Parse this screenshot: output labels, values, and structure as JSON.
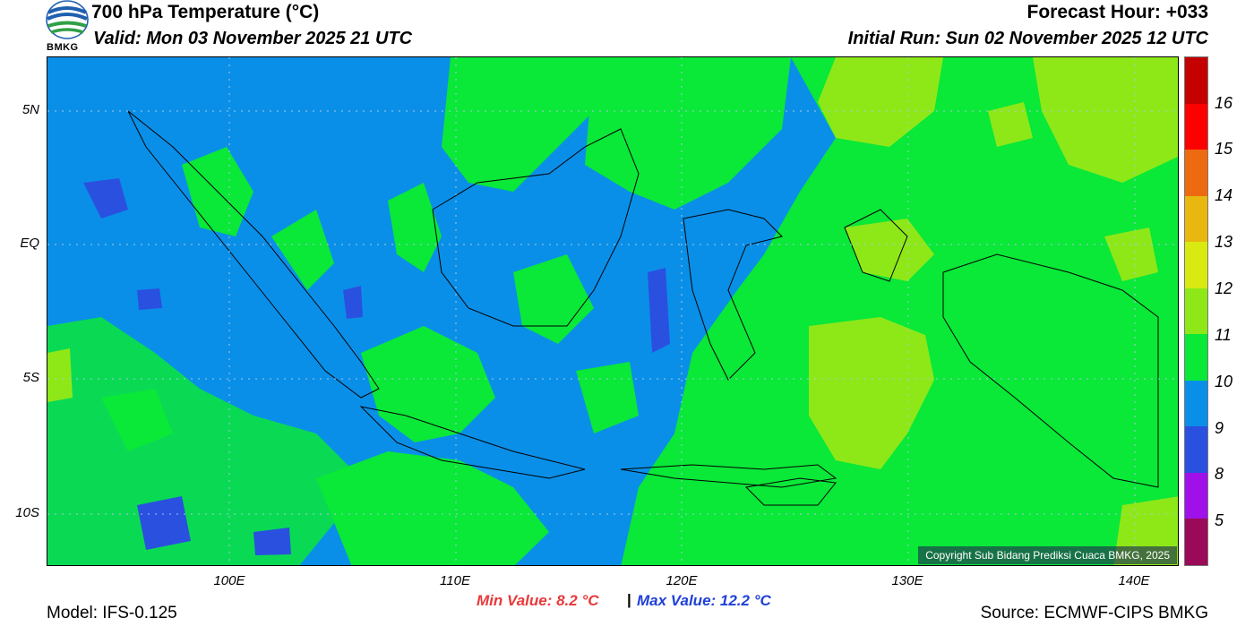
{
  "header": {
    "title": "700 hPa Temperature (°C)",
    "valid": "Valid: Mon 03 November 2025 21 UTC",
    "forecast_hour": "Forecast Hour: +033",
    "initial_run": "Initial Run: Sun 02 November 2025 12 UTC"
  },
  "logo": {
    "text": "BMKG"
  },
  "map": {
    "lat_labels": [
      "5N",
      "EQ",
      "5S",
      "10S"
    ],
    "lon_labels": [
      "100E",
      "110E",
      "120E",
      "130E",
      "140E"
    ],
    "copyright": "Copyright Sub Bidang Prediksi Cuaca BMKG, 2025",
    "extent": {
      "lon": [
        92,
        142
      ],
      "lat": [
        -12,
        7
      ]
    },
    "grid": true
  },
  "colorbar": {
    "labels": [
      "16",
      "15",
      "14",
      "13",
      "12",
      "11",
      "10",
      "9",
      "8",
      "5"
    ],
    "colors": [
      "#c40000",
      "#ff0000",
      "#ee6a10",
      "#e8b810",
      "#d8ea10",
      "#8ee818",
      "#0ae838",
      "#0a8fe8",
      "#2a50e0",
      "#a010e8",
      "#9a0a58"
    ]
  },
  "stats": {
    "min": "Min Value: 8.2 °C",
    "separator": "|",
    "max": "Max Value: 12.2 °C"
  },
  "footer": {
    "model": "Model: IFS-0.125",
    "source": "Source: ECMWF-CIPS BMKG"
  }
}
